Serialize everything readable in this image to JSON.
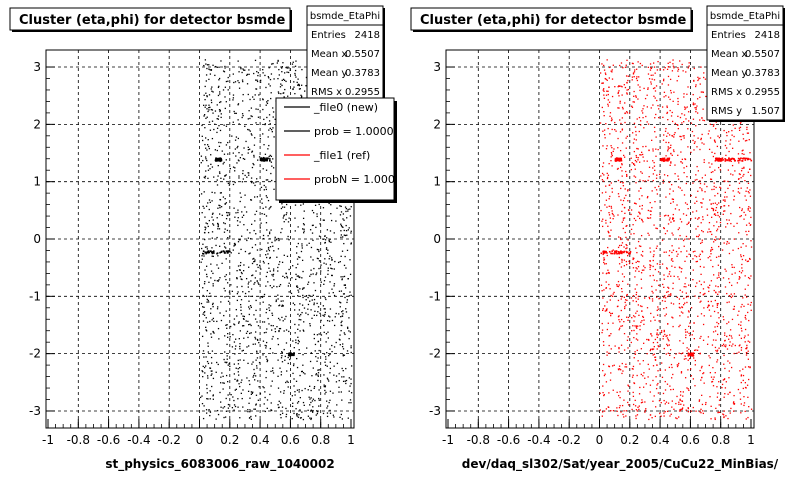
{
  "chart_data": [
    {
      "type": "scatter",
      "title": "Cluster (eta,phi) for detector bsmde",
      "xlabel": "st_physics_6083006_raw_1040002",
      "ylabel": "",
      "xlim": [
        -1,
        1
      ],
      "ylim": [
        -3.14,
        3.14
      ],
      "xticks": [
        "-1",
        "-0.8",
        "-0.6",
        "-0.4",
        "-0.2",
        "0",
        "0.2",
        "0.4",
        "0.6",
        "0.8",
        "1"
      ],
      "yticks": [
        "-3",
        "-2",
        "-1",
        "0",
        "1",
        "2",
        "3"
      ],
      "grid": true,
      "marker_color": "#000000",
      "stats": {
        "name": "bsmde_EtaPhi",
        "rows": [
          {
            "label": "Entries",
            "value": "2418"
          },
          {
            "label": "Mean x",
            "value": "0.5507"
          },
          {
            "label": "Mean y",
            "value": "0.3783"
          },
          {
            "label": "RMS x",
            "value": "0.2955"
          }
        ]
      },
      "legend": {
        "placement": "top-right",
        "entries": [
          {
            "label": "_file0 (new)",
            "color": "#000000"
          },
          {
            "label": "prob = 1.000000",
            "color": "#000000"
          },
          {
            "label": "_file1 (ref)",
            "color": "#ff0000"
          },
          {
            "label": "probN = 1.000000",
            "color": "#ff0000"
          }
        ]
      }
    },
    {
      "type": "scatter",
      "title": "Cluster (eta,phi) for detector bsmde",
      "xlabel": "dev/daq_sl302/Sat/year_2005/CuCu22_MinBias/",
      "ylabel": "",
      "xlim": [
        -1,
        1
      ],
      "ylim": [
        -3.14,
        3.14
      ],
      "xticks": [
        "-1",
        "-0.8",
        "-0.6",
        "-0.4",
        "-0.2",
        "0",
        "0.2",
        "0.4",
        "0.6",
        "0.8",
        "1"
      ],
      "yticks": [
        "-3",
        "-2",
        "-1",
        "0",
        "1",
        "2",
        "3"
      ],
      "grid": true,
      "marker_color": "#ff0000",
      "stats": {
        "name": "bsmde_EtaPhi",
        "rows": [
          {
            "label": "Entries",
            "value": "2418"
          },
          {
            "label": "Mean x",
            "value": "0.5507"
          },
          {
            "label": "Mean y",
            "value": "0.3783"
          },
          {
            "label": "RMS x",
            "value": "0.2955"
          },
          {
            "label": "RMS y",
            "value": "1.507"
          }
        ]
      }
    }
  ]
}
